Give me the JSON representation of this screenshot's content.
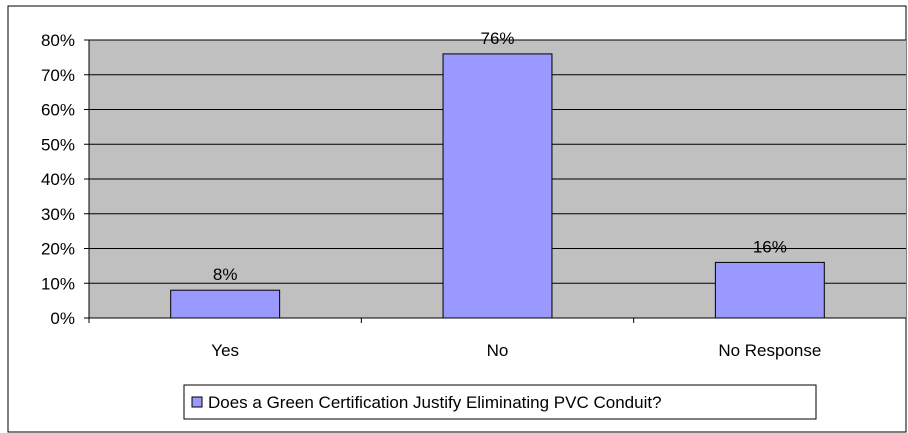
{
  "chart_data": {
    "type": "bar",
    "title": "",
    "xlabel": "",
    "ylabel": "",
    "categories": [
      "Yes",
      "No",
      "No Response"
    ],
    "series": [
      {
        "name": "Does a Green Certification Justify Eliminating PVC Conduit?",
        "values": [
          8,
          76,
          16
        ],
        "data_labels": [
          "8%",
          "76%",
          "16%"
        ],
        "color": "#9999ff"
      }
    ],
    "ylim": [
      0,
      80
    ],
    "yticks": [
      "0%",
      "10%",
      "20%",
      "30%",
      "40%",
      "50%",
      "60%",
      "70%",
      "80%"
    ],
    "ytick_values": [
      0,
      10,
      20,
      30,
      40,
      50,
      60,
      70,
      80
    ],
    "grid": true,
    "legend_position": "bottom",
    "plot_background": "#c0c0c0"
  }
}
